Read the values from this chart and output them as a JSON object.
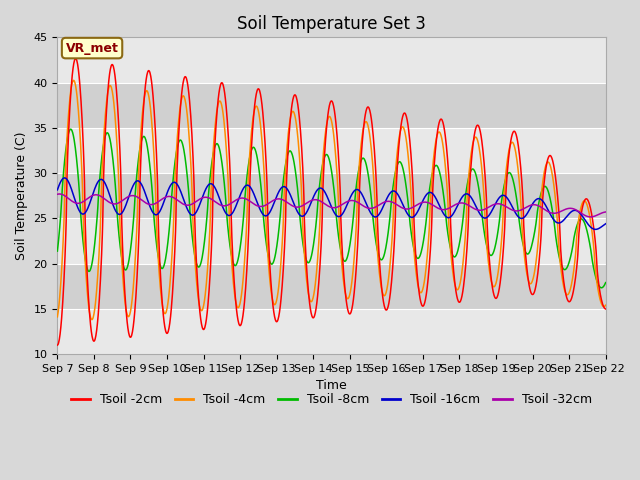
{
  "title": "Soil Temperature Set 3",
  "xlabel": "Time",
  "ylabel": "Soil Temperature (C)",
  "ylim": [
    10,
    45
  ],
  "yticks": [
    10,
    15,
    20,
    25,
    30,
    35,
    40,
    45
  ],
  "xtick_labels": [
    "Sep 7",
    "Sep 8",
    "Sep 9",
    "Sep 10",
    "Sep 11",
    "Sep 12",
    "Sep 13",
    "Sep 14",
    "Sep 15",
    "Sep 16",
    "Sep 17",
    "Sep 18",
    "Sep 19",
    "Sep 20",
    "Sep 21",
    "Sep 22"
  ],
  "legend_label": "VR_met",
  "series": [
    {
      "label": "Tsoil -2cm",
      "color": "#ff0000"
    },
    {
      "label": "Tsoil -4cm",
      "color": "#ff8c00"
    },
    {
      "label": "Tsoil -8cm",
      "color": "#00bb00"
    },
    {
      "label": "Tsoil -16cm",
      "color": "#0000cc"
    },
    {
      "label": "Tsoil -32cm",
      "color": "#aa00aa"
    }
  ],
  "bg_light": "#e8e8e8",
  "bg_dark": "#d0d0d0",
  "grid_color": "#ffffff",
  "fig_bg": "#d8d8d8",
  "title_fontsize": 12,
  "axis_fontsize": 9,
  "tick_fontsize": 8,
  "legend_fontsize": 9
}
